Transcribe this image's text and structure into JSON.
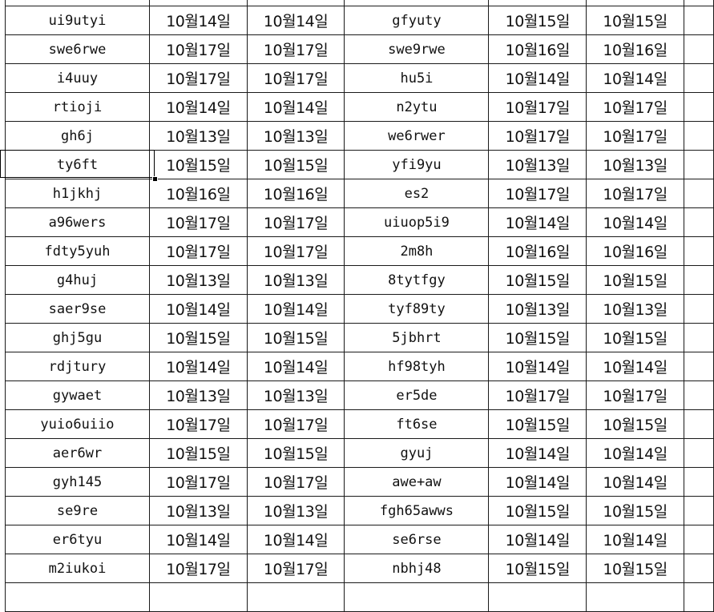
{
  "sheet": {
    "selected_cell": {
      "row": 5,
      "col": 0
    },
    "rows": [
      [
        "ui9utyi",
        "10월14일",
        "10월14일",
        "gfyuty",
        "10월15일",
        "10월15일"
      ],
      [
        "swe6rwe",
        "10월17일",
        "10월17일",
        "swe9rwe",
        "10월16일",
        "10월16일"
      ],
      [
        "i4uuy",
        "10월17일",
        "10월17일",
        "hu5i",
        "10월14일",
        "10월14일"
      ],
      [
        "rtioji",
        "10월14일",
        "10월14일",
        "n2ytu",
        "10월17일",
        "10월17일"
      ],
      [
        "gh6j",
        "10월13일",
        "10월13일",
        "we6rwer",
        "10월17일",
        "10월17일"
      ],
      [
        "ty6ft",
        "10월15일",
        "10월15일",
        "yfi9yu",
        "10월13일",
        "10월13일"
      ],
      [
        "h1jkhj",
        "10월16일",
        "10월16일",
        "es2",
        "10월17일",
        "10월17일"
      ],
      [
        "a96wers",
        "10월17일",
        "10월17일",
        "uiuop5i9",
        "10월14일",
        "10월14일"
      ],
      [
        "fdty5yuh",
        "10월17일",
        "10월17일",
        "2m8h",
        "10월16일",
        "10월16일"
      ],
      [
        "g4huj",
        "10월13일",
        "10월13일",
        "8tytfgy",
        "10월15일",
        "10월15일"
      ],
      [
        "saer9se",
        "10월14일",
        "10월14일",
        "tyf89ty",
        "10월13일",
        "10월13일"
      ],
      [
        "ghj5gu",
        "10월15일",
        "10월15일",
        "5jbhrt",
        "10월15일",
        "10월15일"
      ],
      [
        "rdjtury",
        "10월14일",
        "10월14일",
        "hf98tyh",
        "10월14일",
        "10월14일"
      ],
      [
        "gywaet",
        "10월13일",
        "10월13일",
        "er5de",
        "10월17일",
        "10월17일"
      ],
      [
        "yuio6uiio",
        "10월17일",
        "10월17일",
        "ft6se",
        "10월15일",
        "10월15일"
      ],
      [
        "aer6wr",
        "10월15일",
        "10월15일",
        "gyuj",
        "10월14일",
        "10월14일"
      ],
      [
        "gyh145",
        "10월17일",
        "10월17일",
        "awe+aw",
        "10월14일",
        "10월14일"
      ],
      [
        "se9re",
        "10월13일",
        "10월13일",
        "fgh65awws",
        "10월15일",
        "10월15일"
      ],
      [
        "er6tyu",
        "10월14일",
        "10월14일",
        "se6rse",
        "10월14일",
        "10월14일"
      ],
      [
        "m2iukoi",
        "10월17일",
        "10월17일",
        "nbhj48",
        "10월15일",
        "10월15일"
      ]
    ]
  }
}
